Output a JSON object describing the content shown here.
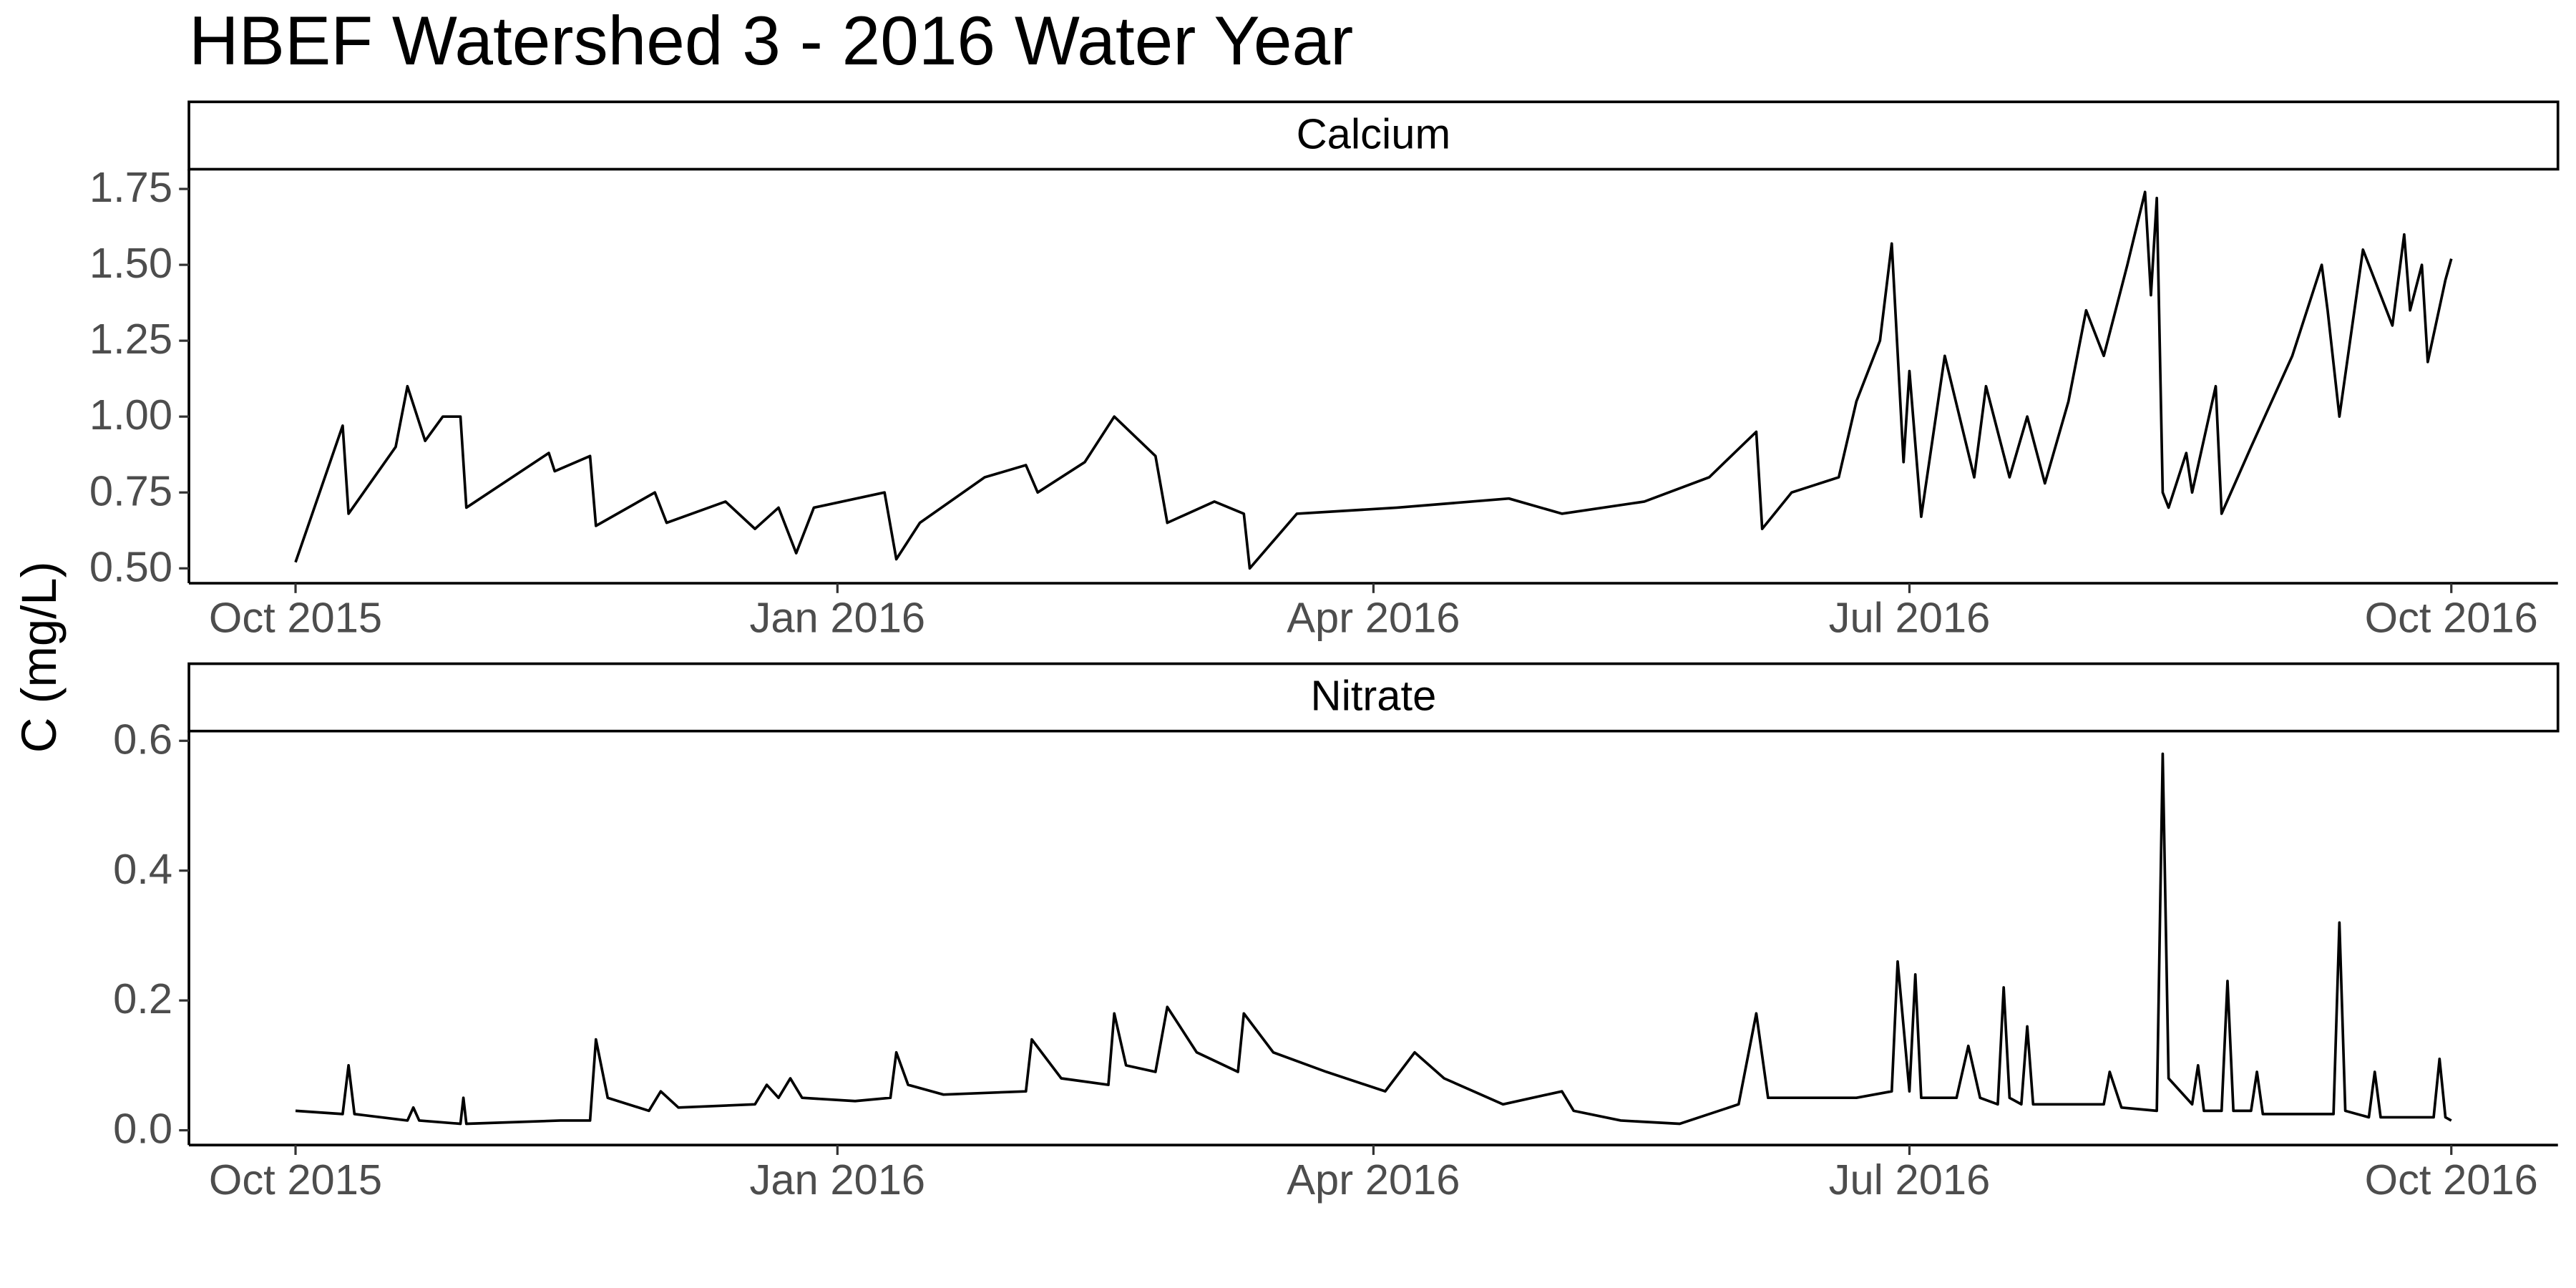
{
  "title": "HBEF Watershed 3 - 2016 Water Year",
  "y_label": "C (mg/L)",
  "chart_data": [
    {
      "type": "line",
      "title": "Calcium",
      "color": "#000000",
      "x": [
        0,
        8,
        9,
        17,
        19,
        22,
        25,
        28,
        29,
        43,
        44,
        50,
        51,
        61,
        63,
        73,
        78,
        82,
        85,
        88,
        100,
        102,
        106,
        117,
        124,
        126,
        134,
        139,
        146,
        148,
        156,
        161,
        162,
        170,
        187,
        206,
        215,
        229,
        240,
        248,
        249,
        254,
        262,
        265,
        269,
        271,
        273,
        274,
        276,
        280,
        285,
        287,
        291,
        294,
        297,
        301,
        304,
        307,
        311,
        314,
        315,
        316,
        317,
        318,
        321,
        322,
        326,
        327,
        332,
        339,
        344,
        345,
        347,
        351,
        356,
        358,
        359,
        361,
        362,
        365,
        366
      ],
      "values": [
        0.52,
        0.97,
        0.68,
        0.9,
        1.1,
        0.92,
        1.0,
        1.0,
        0.7,
        0.88,
        0.82,
        0.87,
        0.64,
        0.75,
        0.65,
        0.72,
        0.63,
        0.7,
        0.55,
        0.7,
        0.75,
        0.53,
        0.65,
        0.8,
        0.84,
        0.75,
        0.85,
        1.0,
        0.87,
        0.65,
        0.72,
        0.68,
        0.5,
        0.68,
        0.7,
        0.73,
        0.68,
        0.72,
        0.8,
        0.95,
        0.63,
        0.75,
        0.8,
        1.05,
        1.25,
        1.57,
        0.85,
        1.15,
        0.67,
        1.2,
        0.8,
        1.1,
        0.8,
        1.0,
        0.78,
        1.05,
        1.35,
        1.2,
        1.5,
        1.74,
        1.4,
        1.72,
        0.75,
        0.7,
        0.88,
        0.75,
        1.1,
        0.68,
        0.9,
        1.2,
        1.5,
        1.35,
        1.0,
        1.55,
        1.3,
        1.6,
        1.35,
        1.5,
        1.18,
        1.45,
        1.52
      ],
      "xlim": [
        -18.1,
        384.1
      ],
      "xticks": [
        {
          "value": 0,
          "label": "Oct 2015"
        },
        {
          "value": 92,
          "label": "Jan 2016"
        },
        {
          "value": 183,
          "label": "Apr 2016"
        },
        {
          "value": 274,
          "label": "Jul 2016"
        },
        {
          "value": 366,
          "label": "Oct 2016"
        }
      ],
      "ylim": [
        0.451,
        1.815
      ],
      "yticks": [
        {
          "value": 0.5,
          "label": "0.50"
        },
        {
          "value": 0.75,
          "label": "0.75"
        },
        {
          "value": 1,
          "label": "1.00"
        },
        {
          "value": 1.25,
          "label": "1.25"
        },
        {
          "value": 1.5,
          "label": "1.50"
        },
        {
          "value": 1.75,
          "label": "1.75"
        }
      ]
    },
    {
      "type": "line",
      "title": "Nitrate",
      "color": "#000000",
      "x": [
        0,
        8,
        9,
        10,
        19,
        20,
        21,
        28,
        28.5,
        29,
        45,
        50,
        51,
        53,
        60,
        62,
        65,
        78,
        80,
        82,
        84,
        86,
        95,
        101,
        102,
        104,
        110,
        124,
        125,
        130,
        138,
        139,
        141,
        146,
        148,
        153,
        160,
        161,
        166,
        175,
        185,
        190,
        195,
        205,
        215,
        217,
        225,
        235,
        245,
        248,
        250,
        265,
        271,
        272,
        274,
        275,
        276,
        282,
        284,
        286,
        289,
        290,
        291,
        293,
        294,
        295,
        307,
        308,
        310,
        316,
        317,
        318,
        322,
        323,
        324,
        327,
        328,
        329,
        332,
        333,
        334,
        346,
        347,
        348,
        352,
        353,
        354,
        363,
        364,
        365,
        366
      ],
      "values": [
        0.03,
        0.025,
        0.1,
        0.025,
        0.015,
        0.035,
        0.015,
        0.01,
        0.05,
        0.01,
        0.015,
        0.015,
        0.14,
        0.05,
        0.03,
        0.06,
        0.035,
        0.04,
        0.07,
        0.05,
        0.08,
        0.05,
        0.045,
        0.05,
        0.12,
        0.07,
        0.055,
        0.06,
        0.14,
        0.08,
        0.07,
        0.18,
        0.1,
        0.09,
        0.19,
        0.12,
        0.09,
        0.18,
        0.12,
        0.09,
        0.06,
        0.12,
        0.08,
        0.04,
        0.06,
        0.03,
        0.015,
        0.01,
        0.04,
        0.18,
        0.05,
        0.05,
        0.06,
        0.26,
        0.06,
        0.24,
        0.05,
        0.05,
        0.13,
        0.05,
        0.04,
        0.22,
        0.05,
        0.04,
        0.16,
        0.04,
        0.04,
        0.09,
        0.035,
        0.03,
        0.58,
        0.08,
        0.04,
        0.1,
        0.03,
        0.03,
        0.23,
        0.03,
        0.03,
        0.09,
        0.025,
        0.025,
        0.32,
        0.03,
        0.02,
        0.09,
        0.02,
        0.02,
        0.11,
        0.02,
        0.015
      ],
      "xlim": [
        -18.1,
        384.1
      ],
      "xticks": [
        {
          "value": 0,
          "label": "Oct 2015"
        },
        {
          "value": 92,
          "label": "Jan 2016"
        },
        {
          "value": 183,
          "label": "Apr 2016"
        },
        {
          "value": 274,
          "label": "Jul 2016"
        },
        {
          "value": 366,
          "label": "Oct 2016"
        }
      ],
      "ylim": [
        -0.0228,
        0.615
      ],
      "yticks": [
        {
          "value": 0,
          "label": "0.0"
        },
        {
          "value": 0.2,
          "label": "0.2"
        },
        {
          "value": 0.4,
          "label": "0.4"
        },
        {
          "value": 0.6,
          "label": "0.6"
        }
      ]
    }
  ]
}
